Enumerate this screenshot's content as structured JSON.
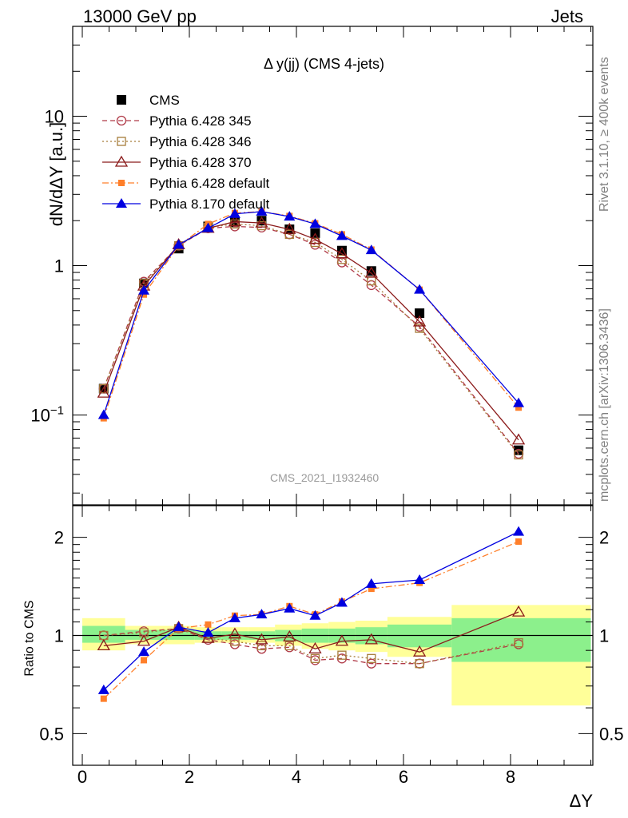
{
  "header": {
    "energy_label": "13000 GeV pp",
    "category_label": "Jets"
  },
  "side_labels": {
    "rivet": "Rivet 3.1.10, ≥ 400k events",
    "source": "mcplots.cern.ch [arXiv:1306.3436]"
  },
  "chart_data": [
    {
      "type": "scatter",
      "title": "Δ y(jj) (CMS 4-jets)",
      "watermark": "CMS_2021_I1932460",
      "ylabel": "dN/dΔY [a.u.]",
      "xlabel": "",
      "yscale": "log",
      "xlim": [
        -0.3,
        9.6
      ],
      "ylim": [
        0.025,
        40
      ],
      "ytick_labels": [
        "10^-1",
        "1",
        "10"
      ],
      "legend_placement": "top-left",
      "x": [
        0.4,
        1.15,
        1.8,
        2.35,
        2.85,
        3.35,
        3.87,
        4.35,
        4.85,
        5.4,
        6.3,
        8.15
      ],
      "series": [
        {
          "name": "CMS",
          "color": "#000000",
          "values": [
            0.15,
            0.76,
            1.3,
            1.83,
            1.95,
            2.0,
            1.75,
            1.65,
            1.26,
            0.92,
            0.48,
            0.058
          ]
        },
        {
          "name": "Pythia 6.428 345",
          "color": "#b03a48",
          "values": [
            0.15,
            0.78,
            1.36,
            1.78,
            1.83,
            1.8,
            1.62,
            1.38,
            1.05,
            0.74,
            0.39,
            0.055
          ]
        },
        {
          "name": "Pythia 6.428 346",
          "color": "#a67c3a",
          "values": [
            0.15,
            0.76,
            1.36,
            1.8,
            1.9,
            1.85,
            1.62,
            1.43,
            1.1,
            0.79,
            0.38,
            0.054
          ]
        },
        {
          "name": "Pythia 6.428 370",
          "color": "#8b1a1a",
          "values": [
            0.14,
            0.73,
            1.38,
            1.78,
            1.97,
            1.93,
            1.75,
            1.5,
            1.2,
            0.89,
            0.42,
            0.068
          ]
        },
        {
          "name": "Pythia 6.428 default",
          "color": "#ff7f2a",
          "values": [
            0.095,
            0.64,
            1.36,
            1.9,
            2.25,
            2.3,
            2.15,
            1.92,
            1.62,
            1.28,
            0.69,
            0.112
          ]
        },
        {
          "name": "Pythia 8.170 default",
          "color": "#0000e0",
          "values": [
            0.1,
            0.68,
            1.38,
            1.78,
            2.22,
            2.3,
            2.13,
            1.9,
            1.58,
            1.27,
            0.69,
            0.12
          ]
        }
      ]
    },
    {
      "type": "scatter",
      "ylabel": "Ratio to CMS",
      "xlabel": "ΔY",
      "yscale": "log",
      "xlim": [
        -0.3,
        9.6
      ],
      "ylim": [
        0.4,
        2.5
      ],
      "xtick_labels": [
        "0",
        "2",
        "4",
        "6",
        "8"
      ],
      "ytick_labels": [
        "0.5",
        "1",
        "2"
      ],
      "band_bins": [
        {
          "x0": 0.0,
          "x1": 0.8,
          "green": [
            0.95,
            1.07
          ],
          "yellow": [
            0.9,
            1.13
          ]
        },
        {
          "x0": 0.8,
          "x1": 1.5,
          "green": [
            0.97,
            1.04
          ],
          "yellow": [
            0.94,
            1.07
          ]
        },
        {
          "x0": 1.5,
          "x1": 2.1,
          "green": [
            0.97,
            1.04
          ],
          "yellow": [
            0.94,
            1.07
          ]
        },
        {
          "x0": 2.1,
          "x1": 2.6,
          "green": [
            0.97,
            1.03
          ],
          "yellow": [
            0.95,
            1.06
          ]
        },
        {
          "x0": 2.6,
          "x1": 3.1,
          "green": [
            0.97,
            1.03
          ],
          "yellow": [
            0.95,
            1.06
          ]
        },
        {
          "x0": 3.1,
          "x1": 3.6,
          "green": [
            0.97,
            1.03
          ],
          "yellow": [
            0.95,
            1.06
          ]
        },
        {
          "x0": 3.6,
          "x1": 4.1,
          "green": [
            0.96,
            1.04
          ],
          "yellow": [
            0.93,
            1.08
          ]
        },
        {
          "x0": 4.1,
          "x1": 4.6,
          "green": [
            0.95,
            1.05
          ],
          "yellow": [
            0.91,
            1.09
          ]
        },
        {
          "x0": 4.6,
          "x1": 5.1,
          "green": [
            0.95,
            1.05
          ],
          "yellow": [
            0.9,
            1.1
          ]
        },
        {
          "x0": 5.1,
          "x1": 5.7,
          "green": [
            0.94,
            1.06
          ],
          "yellow": [
            0.89,
            1.11
          ]
        },
        {
          "x0": 5.7,
          "x1": 6.9,
          "green": [
            0.92,
            1.08
          ],
          "yellow": [
            0.86,
            1.14
          ]
        },
        {
          "x0": 6.9,
          "x1": 9.5,
          "green": [
            0.83,
            1.13
          ],
          "yellow": [
            0.61,
            1.24
          ]
        }
      ],
      "x": [
        0.4,
        1.15,
        1.8,
        2.35,
        2.85,
        3.35,
        3.87,
        4.35,
        4.85,
        5.4,
        6.3,
        8.15
      ],
      "series": [
        {
          "name": "Pythia 6.428 345",
          "values": [
            1.0,
            1.03,
            1.05,
            0.97,
            0.94,
            0.91,
            0.92,
            0.84,
            0.85,
            0.82,
            0.82,
            0.94
          ]
        },
        {
          "name": "Pythia 6.428 346",
          "values": [
            1.0,
            1.02,
            1.05,
            0.98,
            0.96,
            0.93,
            0.93,
            0.85,
            0.87,
            0.85,
            0.82,
            0.95
          ]
        },
        {
          "name": "Pythia 6.428 370",
          "values": [
            0.93,
            0.96,
            1.06,
            0.98,
            1.01,
            0.97,
            0.99,
            0.91,
            0.96,
            0.97,
            0.89,
            1.18
          ]
        },
        {
          "name": "Pythia 6.428 default",
          "values": [
            0.64,
            0.84,
            1.05,
            1.08,
            1.15,
            1.16,
            1.23,
            1.16,
            1.27,
            1.39,
            1.45,
            1.94
          ]
        },
        {
          "name": "Pythia 8.170 default",
          "values": [
            0.68,
            0.89,
            1.06,
            1.02,
            1.13,
            1.16,
            1.21,
            1.15,
            1.26,
            1.44,
            1.48,
            2.08
          ]
        }
      ]
    }
  ]
}
